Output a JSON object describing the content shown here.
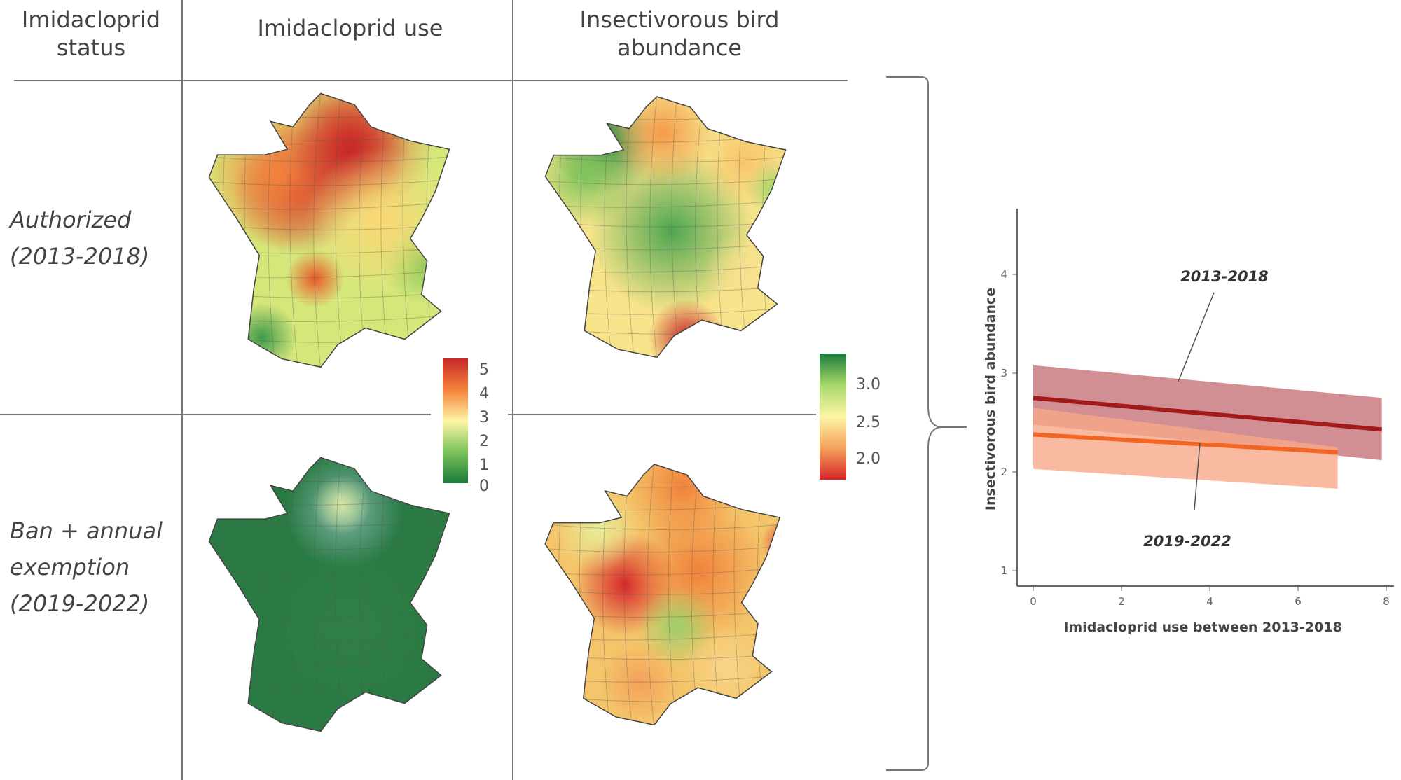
{
  "header": {
    "status_label": "Imidacloprid status",
    "use_label": "Imidacloprid use",
    "abundance_label": "Insectivorous bird abundance"
  },
  "rows": [
    {
      "label_line1": "Authorized",
      "label_line2": "(2013-2018)"
    },
    {
      "label_line1": "Ban + annual",
      "label_line2": "exemption",
      "label_line3": "(2019-2022)"
    }
  ],
  "legend_use": {
    "ticks": [
      "5",
      "4",
      "3",
      "2",
      "1",
      "0"
    ],
    "colors": [
      "#c62828",
      "#f4823c",
      "#fdf5a6",
      "#7cc35a",
      "#1a7a3c"
    ]
  },
  "legend_abundance": {
    "ticks": [
      "3.0",
      "2.5",
      "2.0"
    ],
    "colors": [
      "#1a7a3c",
      "#a6d86a",
      "#fdf5a6",
      "#f4a15a",
      "#d7262a"
    ]
  },
  "chart_data": {
    "type": "line",
    "xlabel": "Imidacloprid use between 2013-2018",
    "ylabel": "Insectivorous bird abundance",
    "xlim": [
      0,
      8
    ],
    "ylim": [
      0.8,
      4.7
    ],
    "xticks": [
      "0",
      "2",
      "4",
      "6",
      "8"
    ],
    "yticks": [
      "1",
      "2",
      "3",
      "4"
    ],
    "grid": false,
    "series": [
      {
        "name": "2013-2018",
        "color": "#a31a1a",
        "band_color": "#c97a80",
        "x": [
          0,
          7.9
        ],
        "y": [
          2.75,
          2.43
        ],
        "lower": [
          2.48,
          2.12
        ],
        "upper": [
          3.08,
          2.75
        ]
      },
      {
        "name": "2019-2022",
        "color": "#f26522",
        "band_color": "#f9a88a",
        "x": [
          0,
          6.9
        ],
        "y": [
          2.38,
          2.2
        ],
        "lower": [
          2.03,
          1.83
        ],
        "upper": [
          2.65,
          2.25
        ]
      }
    ]
  }
}
